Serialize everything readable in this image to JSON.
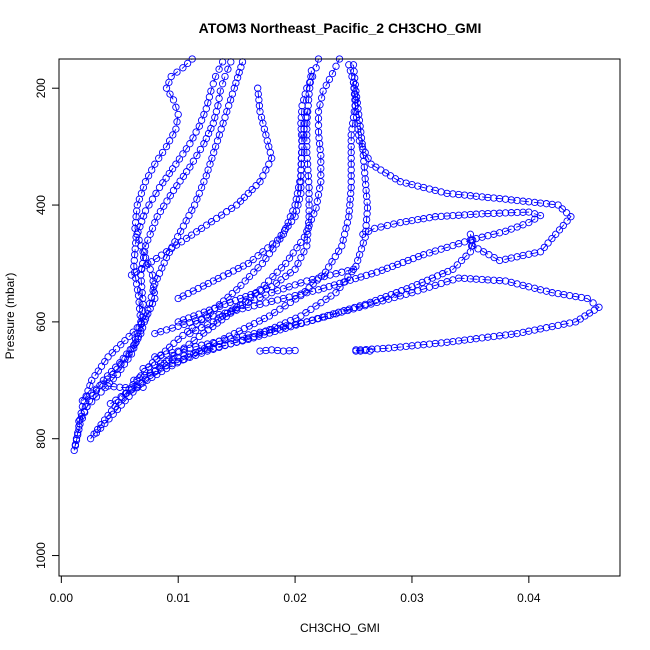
{
  "chart_data": {
    "type": "scatter",
    "title": "ATOM3 Northeast_Pacific_2 CH3CHO_GMI",
    "xlabel": "CH3CHO_GMI",
    "ylabel": "Pressure (mbar)",
    "xlim": [
      -0.0002,
      0.0478
    ],
    "ylim": [
      1035,
      150
    ],
    "y_reversed": true,
    "x_ticks": [
      0,
      0.01,
      0.02,
      0.03,
      0.04
    ],
    "x_tick_labels": [
      "0.00",
      "0.01",
      "0.02",
      "0.03",
      "0.04"
    ],
    "y_ticks": [
      200,
      400,
      600,
      800,
      1000
    ],
    "y_tick_labels": [
      "200",
      "400",
      "600",
      "800",
      "1000"
    ],
    "marker": "open-circle",
    "line_style": "dashed",
    "color": "#0000ff",
    "grid": false,
    "series": [
      {
        "x": [
          0.0011,
          0.0014,
          0.0018,
          0.0026,
          0.004,
          0.0058,
          0.0072,
          0.008,
          0.0078,
          0.007,
          0.0063,
          0.0065,
          0.0072,
          0.008,
          0.009,
          0.0098,
          0.01,
          0.0096,
          0.009,
          0.0094,
          0.0104,
          0.0112
        ],
        "y": [
          820,
          790,
          745,
          700,
          660,
          625,
          595,
          560,
          520,
          480,
          440,
          400,
          360,
          330,
          300,
          270,
          245,
          220,
          200,
          180,
          165,
          150
        ]
      },
      {
        "x": [
          0.0012,
          0.0016,
          0.0024,
          0.0036,
          0.005,
          0.0062,
          0.0068,
          0.0066,
          0.0062,
          0.0064,
          0.0072,
          0.0084,
          0.0098,
          0.011,
          0.0118,
          0.0124,
          0.0128,
          0.0132,
          0.0138
        ],
        "y": [
          812,
          775,
          735,
          700,
          670,
          640,
          600,
          555,
          505,
          455,
          410,
          370,
          330,
          295,
          265,
          235,
          205,
          180,
          155
        ]
      },
      {
        "x": [
          0.0015,
          0.0022,
          0.0034,
          0.0048,
          0.006,
          0.0068,
          0.007,
          0.0068,
          0.0072,
          0.0082,
          0.0096,
          0.011,
          0.0122,
          0.013,
          0.0134,
          0.0136,
          0.014,
          0.0145
        ],
        "y": [
          770,
          745,
          720,
          690,
          655,
          615,
          570,
          520,
          470,
          420,
          375,
          335,
          295,
          260,
          230,
          205,
          180,
          155
        ]
      },
      {
        "x": [
          0.0018,
          0.003,
          0.0044,
          0.0058,
          0.0068,
          0.0074,
          0.008,
          0.009,
          0.0102,
          0.0114,
          0.0124,
          0.0132,
          0.014,
          0.0148,
          0.0155
        ],
        "y": [
          735,
          715,
          690,
          655,
          620,
          580,
          535,
          490,
          445,
          400,
          350,
          300,
          250,
          200,
          155
        ]
      },
      {
        "x": [
          0.0025,
          0.004,
          0.0058,
          0.0078,
          0.01,
          0.0124,
          0.015,
          0.0172,
          0.019,
          0.02,
          0.0205,
          0.0206,
          0.0205,
          0.0206,
          0.021,
          0.0215,
          0.0218,
          0.022
        ],
        "y": [
          800,
          760,
          715,
          670,
          630,
          590,
          545,
          500,
          450,
          400,
          350,
          300,
          260,
          230,
          200,
          180,
          165,
          150
        ]
      },
      {
        "x": [
          0.003,
          0.0048,
          0.0068,
          0.0092,
          0.0118,
          0.0145,
          0.017,
          0.0192,
          0.0208,
          0.0218,
          0.0222,
          0.0222,
          0.022,
          0.022,
          0.0224,
          0.0232,
          0.0238
        ],
        "y": [
          790,
          750,
          705,
          665,
          625,
          585,
          545,
          500,
          455,
          405,
          360,
          315,
          275,
          240,
          205,
          175,
          150
        ]
      },
      {
        "x": [
          0.0042,
          0.0065,
          0.009,
          0.0118,
          0.0148,
          0.0178,
          0.0205,
          0.0226,
          0.024,
          0.0246,
          0.0248,
          0.0248,
          0.0248,
          0.025,
          0.0252,
          0.025,
          0.0246
        ],
        "y": [
          740,
          710,
          680,
          650,
          620,
          590,
          555,
          515,
          470,
          420,
          370,
          320,
          280,
          250,
          220,
          190,
          160
        ]
      },
      {
        "x": [
          0.0062,
          0.009,
          0.0125,
          0.0165,
          0.0205,
          0.0235,
          0.0252,
          0.026,
          0.0262,
          0.026,
          0.0258,
          0.0255,
          0.0252,
          0.025
        ],
        "y": [
          700,
          675,
          650,
          625,
          590,
          550,
          505,
          455,
          405,
          355,
          305,
          255,
          205,
          160
        ]
      },
      {
        "x": [
          0.007,
          0.011,
          0.016,
          0.021,
          0.026,
          0.03,
          0.0335,
          0.035,
          0.0352,
          0.035,
          0.0352,
          0.0375,
          0.041,
          0.0436,
          0.0425,
          0.038,
          0.033,
          0.029,
          0.0265,
          0.0255,
          0.0252,
          0.025
        ],
        "y": [
          680,
          655,
          630,
          600,
          570,
          540,
          510,
          480,
          460,
          450,
          470,
          495,
          480,
          420,
          400,
          390,
          380,
          360,
          330,
          290,
          240,
          190
        ]
      },
      {
        "x": [
          0.008,
          0.012,
          0.0165,
          0.021,
          0.0255,
          0.03,
          0.034,
          0.038,
          0.042,
          0.045,
          0.046,
          0.044,
          0.039,
          0.033,
          0.028,
          0.0256,
          0.0252
        ],
        "y": [
          660,
          640,
          620,
          600,
          575,
          550,
          525,
          530,
          550,
          560,
          575,
          600,
          620,
          635,
          645,
          648,
          650
        ]
      },
      {
        "x": [
          0.008,
          0.012,
          0.017,
          0.022,
          0.027,
          0.031,
          0.035,
          0.038,
          0.04,
          0.041,
          0.04,
          0.036,
          0.032,
          0.029,
          0.0268,
          0.0258
        ],
        "y": [
          620,
          595,
          570,
          545,
          515,
          485,
          460,
          445,
          430,
          418,
          412,
          415,
          420,
          430,
          440,
          450
        ]
      },
      {
        "x": [
          0.01,
          0.014,
          0.018,
          0.02,
          0.021,
          0.0212,
          0.0212,
          0.021,
          0.021,
          0.0212,
          0.0214
        ],
        "y": [
          600,
          570,
          540,
          510,
          470,
          420,
          370,
          310,
          260,
          210,
          170
        ]
      },
      {
        "x": [
          0.01,
          0.013,
          0.016,
          0.0185,
          0.02,
          0.0205,
          0.0205,
          0.0206,
          0.021
        ],
        "y": [
          560,
          530,
          500,
          460,
          420,
          380,
          340,
          290,
          240
        ]
      },
      {
        "x": [
          0.006,
          0.009,
          0.012,
          0.015,
          0.017,
          0.018,
          0.0175,
          0.017,
          0.0168
        ],
        "y": [
          520,
          480,
          440,
          400,
          360,
          320,
          280,
          240,
          200
        ]
      },
      {
        "x": [
          0.011,
          0.013,
          0.015,
          0.018,
          0.021,
          0.024,
          0.025
        ],
        "y": [
          620,
          600,
          575,
          550,
          530,
          515,
          510
        ]
      },
      {
        "x": [
          0.017,
          0.018,
          0.019,
          0.02
        ],
        "y": [
          650,
          648,
          650,
          649
        ]
      },
      {
        "x": [
          0.0252,
          0.0256,
          0.026,
          0.0264
        ],
        "y": [
          648,
          650,
          649,
          650
        ]
      },
      {
        "x": [
          0.004,
          0.005,
          0.006,
          0.007
        ],
        "y": [
          710,
          712,
          713,
          712
        ]
      }
    ]
  }
}
